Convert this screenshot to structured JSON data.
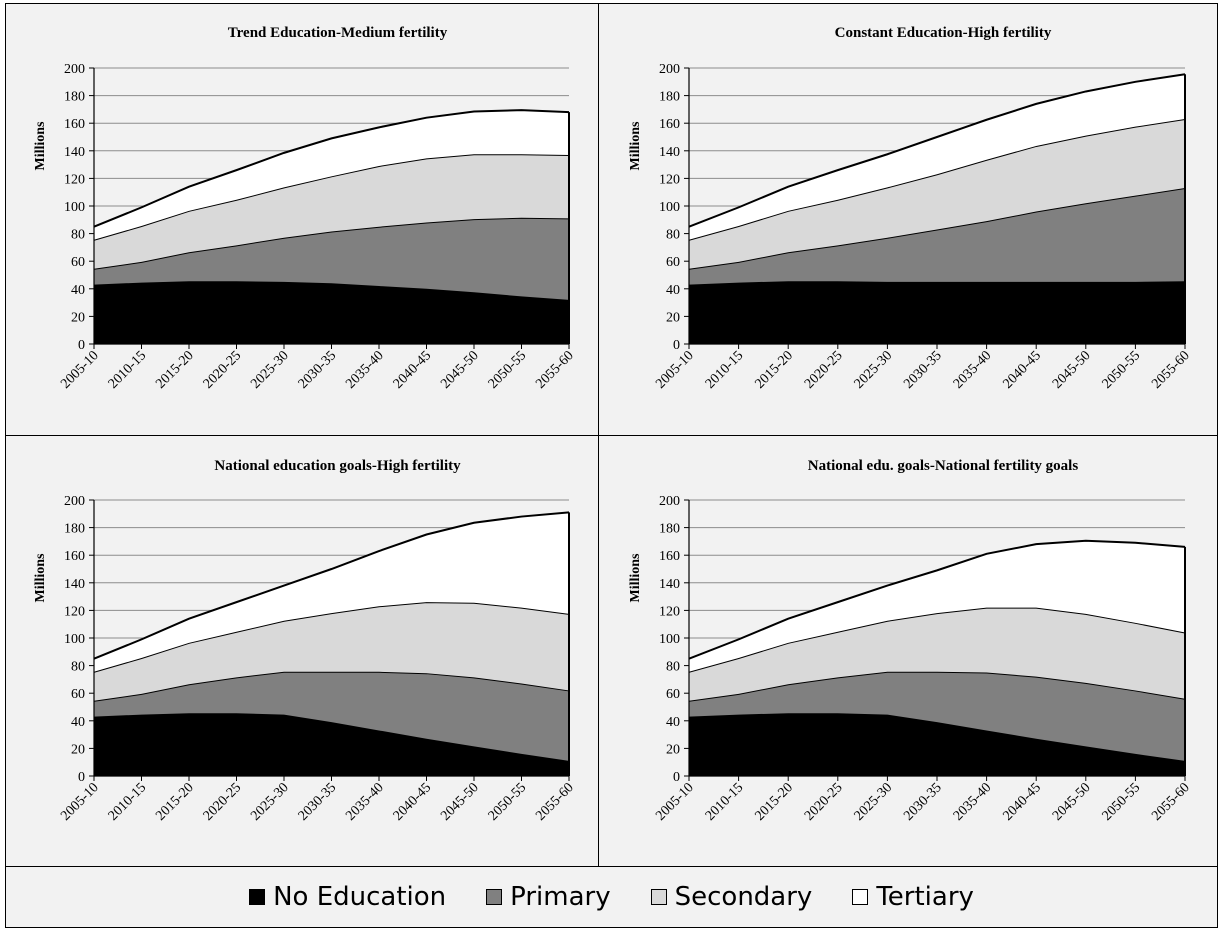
{
  "legend": {
    "items": [
      {
        "label": "No Education",
        "color": "#000000"
      },
      {
        "label": "Primary",
        "color": "#808080"
      },
      {
        "label": "Secondary",
        "color": "#d9d9d9"
      },
      {
        "label": "Tertiary",
        "color": "#ffffff"
      }
    ]
  },
  "chart_data": [
    {
      "type": "area",
      "stacked": true,
      "title": "Trend Education-Medium fertility",
      "xlabel": "",
      "ylabel": "Millions",
      "ylim": [
        0,
        200
      ],
      "yticks": [
        0,
        20,
        40,
        60,
        80,
        100,
        120,
        140,
        160,
        180,
        200
      ],
      "grid": true,
      "categories": [
        "2005-10",
        "2010-15",
        "2015-20",
        "2020-25",
        "2025-30",
        "2030-35",
        "2035-40",
        "2040-45",
        "2045-50",
        "2050-55",
        "2055-60"
      ],
      "series": [
        {
          "name": "No Education",
          "color": "#000000",
          "values": [
            43,
            44.5,
            45.5,
            45.5,
            45,
            44,
            42,
            40,
            37.5,
            34.5,
            32
          ]
        },
        {
          "name": "Primary",
          "color": "#808080",
          "values": [
            11.5,
            15,
            21,
            26,
            32,
            37.5,
            43,
            48,
            53,
            57,
            59
          ]
        },
        {
          "name": "Secondary",
          "color": "#d9d9d9",
          "values": [
            21,
            26,
            30,
            33,
            36.5,
            40,
            44,
            46.5,
            47,
            46,
            46
          ]
        },
        {
          "name": "Tertiary",
          "color": "#ffffff",
          "values": [
            9.5,
            13.5,
            17.5,
            21.5,
            25,
            27.5,
            28,
            29.5,
            31,
            32,
            31
          ]
        }
      ]
    },
    {
      "type": "area",
      "stacked": true,
      "title": "Constant Education-High fertility",
      "xlabel": "",
      "ylabel": "Millions",
      "ylim": [
        0,
        200
      ],
      "yticks": [
        0,
        20,
        40,
        60,
        80,
        100,
        120,
        140,
        160,
        180,
        200
      ],
      "grid": true,
      "categories": [
        "2005-10",
        "2010-15",
        "2015-20",
        "2020-25",
        "2025-30",
        "2030-35",
        "2035-40",
        "2040-45",
        "2045-50",
        "2050-55",
        "2055-60"
      ],
      "series": [
        {
          "name": "No Education",
          "color": "#000000",
          "values": [
            43,
            44.5,
            45.5,
            45.5,
            45,
            45,
            45,
            45,
            45,
            45,
            45.5
          ]
        },
        {
          "name": "Primary",
          "color": "#808080",
          "values": [
            11.5,
            15,
            21,
            26,
            32,
            38,
            44,
            51,
            57,
            62.5,
            67.5
          ]
        },
        {
          "name": "Secondary",
          "color": "#d9d9d9",
          "values": [
            21,
            26,
            30,
            33,
            36.5,
            40,
            44.5,
            47.5,
            49,
            50,
            50
          ]
        },
        {
          "name": "Tertiary",
          "color": "#ffffff",
          "values": [
            9.5,
            13.5,
            17.5,
            21.5,
            24,
            27,
            29,
            30.5,
            32,
            32.5,
            32.5
          ]
        }
      ]
    },
    {
      "type": "area",
      "stacked": true,
      "title": "National education goals-High fertility",
      "xlabel": "",
      "ylabel": "Millions",
      "ylim": [
        0,
        200
      ],
      "yticks": [
        0,
        20,
        40,
        60,
        80,
        100,
        120,
        140,
        160,
        180,
        200
      ],
      "grid": true,
      "categories": [
        "2005-10",
        "2010-15",
        "2015-20",
        "2020-25",
        "2025-30",
        "2030-35",
        "2035-40",
        "2040-45",
        "2045-50",
        "2050-55",
        "2055-60"
      ],
      "series": [
        {
          "name": "No Education",
          "color": "#000000",
          "values": [
            43,
            44.5,
            45.5,
            45.5,
            44.5,
            39,
            33,
            27,
            21.5,
            16,
            11
          ]
        },
        {
          "name": "Primary",
          "color": "#808080",
          "values": [
            11.5,
            15,
            21,
            26,
            31,
            36.5,
            42.5,
            47.5,
            50,
            51,
            51
          ]
        },
        {
          "name": "Secondary",
          "color": "#d9d9d9",
          "values": [
            21,
            26,
            30,
            33,
            37,
            42.5,
            47.5,
            51.5,
            54,
            55,
            55.5
          ]
        },
        {
          "name": "Tertiary",
          "color": "#ffffff",
          "values": [
            9.5,
            13.5,
            17.5,
            21.5,
            25.5,
            32,
            40,
            49,
            58,
            66,
            73.5
          ]
        }
      ]
    },
    {
      "type": "area",
      "stacked": true,
      "title": "National edu. goals-National fertility goals",
      "xlabel": "",
      "ylabel": "Millions",
      "ylim": [
        0,
        200
      ],
      "yticks": [
        0,
        20,
        40,
        60,
        80,
        100,
        120,
        140,
        160,
        180,
        200
      ],
      "grid": true,
      "categories": [
        "2005-10",
        "2010-15",
        "2015-20",
        "2020-25",
        "2025-30",
        "2030-35",
        "2035-40",
        "2040-45",
        "2045-50",
        "2050-55",
        "2055-60"
      ],
      "series": [
        {
          "name": "No Education",
          "color": "#000000",
          "values": [
            43,
            44.5,
            45.5,
            45.5,
            44.5,
            39,
            33,
            27,
            21.5,
            16,
            11
          ]
        },
        {
          "name": "Primary",
          "color": "#808080",
          "values": [
            11.5,
            15,
            21,
            26,
            31,
            36.5,
            42,
            45,
            46,
            46,
            45
          ]
        },
        {
          "name": "Secondary",
          "color": "#d9d9d9",
          "values": [
            21,
            26,
            30,
            33,
            37,
            42.5,
            47,
            50,
            50,
            49,
            48
          ]
        },
        {
          "name": "Tertiary",
          "color": "#ffffff",
          "values": [
            9.5,
            13.5,
            17.5,
            21.5,
            25.5,
            31,
            39,
            46,
            53,
            58,
            62
          ]
        }
      ]
    }
  ]
}
